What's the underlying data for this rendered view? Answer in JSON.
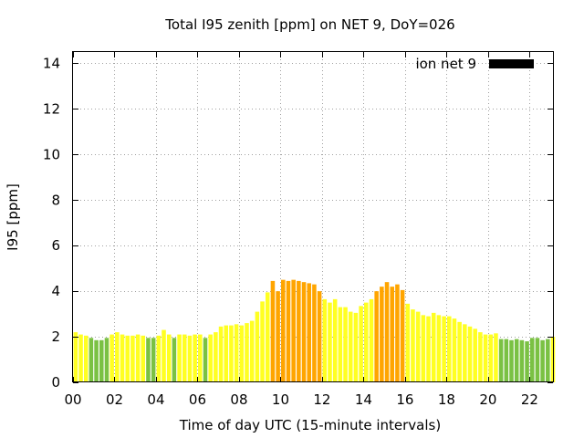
{
  "chart_data": {
    "type": "bar",
    "title": "Total I95 zenith [ppm] on NET 9, DoY=026",
    "xlabel": "Time of day UTC (15-minute intervals)",
    "ylabel": "I95 [ppm]",
    "ylim": [
      0,
      14.5
    ],
    "xlim": [
      0,
      92.5
    ],
    "yticks": [
      0,
      2,
      4,
      6,
      8,
      10,
      12,
      14
    ],
    "ytick_labels": [
      "0",
      "2",
      "4",
      "6",
      "8",
      "10",
      "12",
      "14"
    ],
    "xticks": [
      0,
      8,
      16,
      24,
      32,
      40,
      48,
      56,
      64,
      72,
      80,
      88
    ],
    "xtick_labels": [
      "00",
      "02",
      "04",
      "06",
      "08",
      "10",
      "12",
      "14",
      "16",
      "18",
      "20",
      "22"
    ],
    "grid": true,
    "legend": {
      "label": "ion net 9",
      "color": "#000000",
      "position": "top-right"
    },
    "thresholds": {
      "green_below": 2.0,
      "orange_from": 4.0
    },
    "colors": {
      "green": "#7ac143",
      "yellow": "#ffff22",
      "orange": "#ffa500"
    },
    "values": [
      2.2,
      2.1,
      2.05,
      1.95,
      1.85,
      1.85,
      1.95,
      2.1,
      2.2,
      2.1,
      2.05,
      2.05,
      2.1,
      2.05,
      1.95,
      1.95,
      2.05,
      2.3,
      2.1,
      1.95,
      2.1,
      2.1,
      2.05,
      2.1,
      2.1,
      1.95,
      2.1,
      2.2,
      2.45,
      2.5,
      2.5,
      2.55,
      2.5,
      2.6,
      2.7,
      3.1,
      3.55,
      3.95,
      4.45,
      4.0,
      4.5,
      4.45,
      4.5,
      4.45,
      4.4,
      4.35,
      4.3,
      4.0,
      3.65,
      3.5,
      3.65,
      3.3,
      3.3,
      3.1,
      3.05,
      3.35,
      3.5,
      3.65,
      4.0,
      4.2,
      4.4,
      4.2,
      4.3,
      4.05,
      3.45,
      3.2,
      3.1,
      2.95,
      2.9,
      3.05,
      2.95,
      2.9,
      2.9,
      2.8,
      2.65,
      2.55,
      2.45,
      2.35,
      2.2,
      2.1,
      2.1,
      2.15,
      1.9,
      1.9,
      1.85,
      1.9,
      1.85,
      1.8,
      1.95,
      1.95,
      1.85,
      1.9,
      2.0
    ]
  }
}
